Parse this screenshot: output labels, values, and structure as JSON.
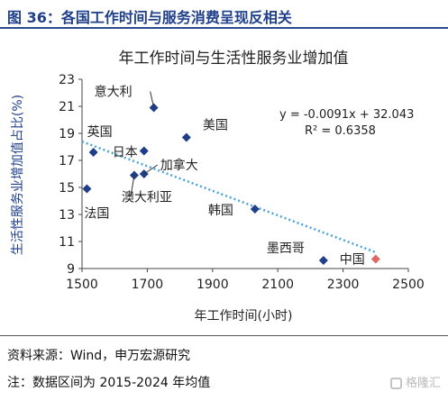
{
  "figure_title": "图 36：各国工作时间与服务消费呈现反相关",
  "source_note": "资料来源：Wind，申万宏源研究",
  "footnote": "注：数据区间为 2015-2024 年均值",
  "watermark": "格隆汇",
  "colors": {
    "title": "#1f3f8a",
    "point": "#1f3f8a",
    "highlight_point": "#e06666",
    "trendline": "#4aa3d8"
  },
  "chart_data": {
    "type": "scatter",
    "title": "年工作时间与生活性服务业增加值",
    "xlabel": "年工作时间(小时)",
    "ylabel": "生活性服务业增加值占比(%)",
    "xlim": [
      1500,
      2500
    ],
    "ylim": [
      9,
      23
    ],
    "xticks": [
      1500,
      1700,
      1900,
      2100,
      2300,
      2500
    ],
    "yticks": [
      9,
      11,
      13,
      15,
      17,
      19,
      21,
      23
    ],
    "grid": false,
    "points": [
      {
        "label": "意大利",
        "x": 1720,
        "y": 20.9
      },
      {
        "label": "美国",
        "x": 1820,
        "y": 18.7
      },
      {
        "label": "日本",
        "x": 1690,
        "y": 17.7
      },
      {
        "label": "英国",
        "x": 1535,
        "y": 17.6
      },
      {
        "label": "加拿大",
        "x": 1690,
        "y": 16.0
      },
      {
        "label": "澳大利亚",
        "x": 1660,
        "y": 15.9
      },
      {
        "label": "法国",
        "x": 1515,
        "y": 14.9
      },
      {
        "label": "韩国",
        "x": 2030,
        "y": 13.4
      },
      {
        "label": "墨西哥",
        "x": 2240,
        "y": 9.6
      },
      {
        "label": "中国",
        "x": 2400,
        "y": 9.7,
        "highlight": true
      }
    ],
    "trendline": {
      "slope": -0.0091,
      "intercept": 32.043,
      "x_range": [
        1500,
        2400
      ]
    },
    "annotations": [
      "y = -0.0091x + 32.043",
      "R² = 0.6358"
    ]
  }
}
